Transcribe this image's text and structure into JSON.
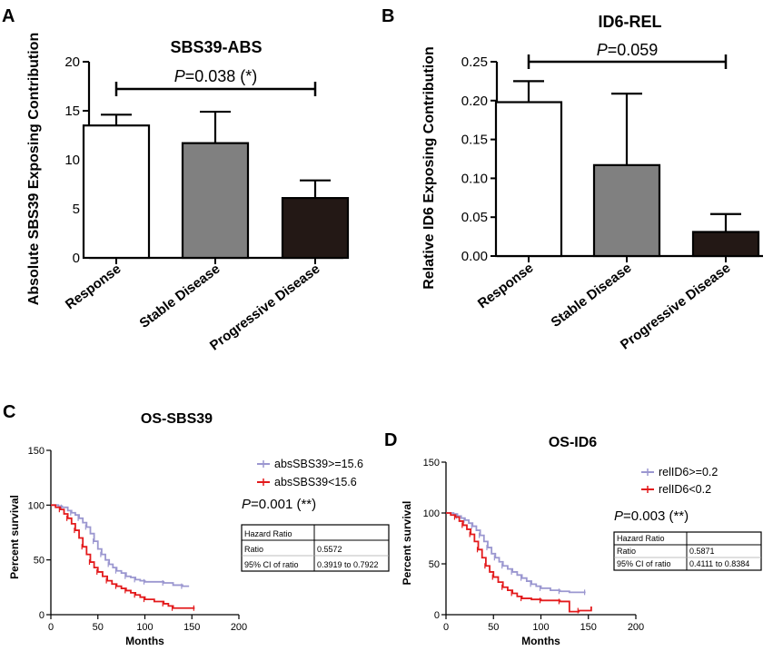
{
  "panel_letters": [
    "A",
    "B",
    "C",
    "D"
  ],
  "chart_data": [
    {
      "panel": "A",
      "type": "bar",
      "title": "SBS39-ABS",
      "xlabel": "",
      "ylabel": "Absolute SBS39 Exposing Contribution",
      "categories": [
        "Response",
        "Stable Disease",
        "Progressive Disease"
      ],
      "values": [
        13.5,
        11.7,
        6.1
      ],
      "errors": [
        1.1,
        3.2,
        1.8
      ],
      "colors": [
        "#ffffff",
        "#808080",
        "#231815"
      ],
      "ylim": [
        0,
        20
      ],
      "yticks": [
        0,
        5,
        10,
        15,
        20
      ],
      "ytick_labels": [
        "0",
        "5",
        "10",
        "15",
        "20"
      ],
      "annotation": {
        "p_label": "P",
        "p_value": "=0.038 (*)",
        "from": 0,
        "to": 2
      }
    },
    {
      "panel": "B",
      "type": "bar",
      "title": "ID6-REL",
      "xlabel": "",
      "ylabel": "Relative ID6 Exposing Contribution",
      "categories": [
        "Response",
        "Stable Disease",
        "Progressive Disease"
      ],
      "values": [
        0.198,
        0.117,
        0.031
      ],
      "errors": [
        0.027,
        0.092,
        0.023
      ],
      "colors": [
        "#ffffff",
        "#808080",
        "#231815"
      ],
      "ylim": [
        0,
        0.25
      ],
      "yticks": [
        0,
        0.05,
        0.1,
        0.15,
        0.2,
        0.25
      ],
      "ytick_labels": [
        "0.00",
        "0.05",
        "0.10",
        "0.15",
        "0.20",
        "0.25"
      ],
      "annotation": {
        "p_label": "P",
        "p_value": "=0.059",
        "from": 0,
        "to": 2
      }
    },
    {
      "panel": "C",
      "type": "line",
      "title": "OS-SBS39",
      "xlabel": "Months",
      "ylabel": "Percent survival",
      "xlim": [
        0,
        200
      ],
      "ylim": [
        0,
        150
      ],
      "xticks": [
        0,
        50,
        100,
        150,
        200
      ],
      "yticks": [
        0,
        50,
        100,
        150
      ],
      "series": [
        {
          "name": "absSBS39>=15.6",
          "color": "#9b97d0",
          "x": [
            0,
            8,
            12,
            18,
            22,
            26,
            30,
            34,
            38,
            42,
            46,
            50,
            54,
            58,
            62,
            66,
            70,
            75,
            80,
            85,
            90,
            95,
            100,
            110,
            120,
            130,
            140,
            147
          ],
          "y": [
            100,
            99,
            98,
            95,
            93,
            91,
            88,
            84,
            80,
            74,
            67,
            60,
            55,
            50,
            46,
            43,
            40,
            38,
            35,
            34,
            32,
            31,
            30,
            30,
            29,
            27,
            26,
            26
          ]
        },
        {
          "name": "absSBS39<15.6",
          "color": "#e31a1c",
          "x": [
            0,
            5,
            10,
            14,
            18,
            22,
            26,
            30,
            34,
            38,
            42,
            46,
            50,
            55,
            60,
            65,
            70,
            75,
            80,
            85,
            90,
            95,
            100,
            110,
            120,
            125,
            130,
            140,
            153
          ],
          "y": [
            100,
            98,
            96,
            92,
            88,
            83,
            77,
            70,
            62,
            55,
            48,
            43,
            39,
            35,
            31,
            28,
            26,
            24,
            22,
            20,
            18,
            16,
            14,
            12,
            10,
            8,
            6,
            6,
            6
          ]
        }
      ],
      "p_label": "P",
      "p_value": "=0.001 (**)",
      "hazard_table": [
        [
          "Hazard Ratio",
          ""
        ],
        [
          "Ratio",
          "0.5572"
        ],
        [
          "95% CI of ratio",
          "0.3919 to 0.7922"
        ]
      ]
    },
    {
      "panel": "D",
      "type": "line",
      "title": "OS-ID6",
      "xlabel": "Months",
      "ylabel": "Percent survival",
      "xlim": [
        0,
        200
      ],
      "ylim": [
        0,
        150
      ],
      "xticks": [
        0,
        50,
        100,
        150,
        200
      ],
      "yticks": [
        0,
        50,
        100,
        150
      ],
      "series": [
        {
          "name": "relID6>=0.2",
          "color": "#9b97d0",
          "x": [
            0,
            8,
            12,
            16,
            20,
            24,
            28,
            32,
            36,
            40,
            44,
            48,
            52,
            56,
            60,
            65,
            70,
            75,
            80,
            85,
            90,
            95,
            100,
            110,
            120,
            130,
            147
          ],
          "y": [
            100,
            99,
            97,
            95,
            93,
            90,
            87,
            83,
            78,
            72,
            66,
            60,
            56,
            52,
            48,
            45,
            42,
            39,
            36,
            33,
            30,
            28,
            26,
            24,
            23,
            22,
            22
          ]
        },
        {
          "name": "relID6<0.2",
          "color": "#e31a1c",
          "x": [
            0,
            5,
            10,
            14,
            18,
            22,
            26,
            30,
            34,
            38,
            42,
            46,
            50,
            55,
            60,
            65,
            70,
            75,
            80,
            90,
            100,
            110,
            120,
            130,
            140,
            153
          ],
          "y": [
            100,
            98,
            96,
            92,
            88,
            84,
            79,
            72,
            64,
            56,
            48,
            42,
            37,
            32,
            27,
            24,
            21,
            18,
            16,
            15,
            14,
            14,
            13,
            3,
            4,
            8
          ]
        }
      ],
      "p_label": "P",
      "p_value": "=0.003 (**)",
      "hazard_table": [
        [
          "Hazard Ratio",
          ""
        ],
        [
          "Ratio",
          "0.5871"
        ],
        [
          "95% CI of ratio",
          "0.4111 to 0.8384"
        ]
      ]
    }
  ]
}
